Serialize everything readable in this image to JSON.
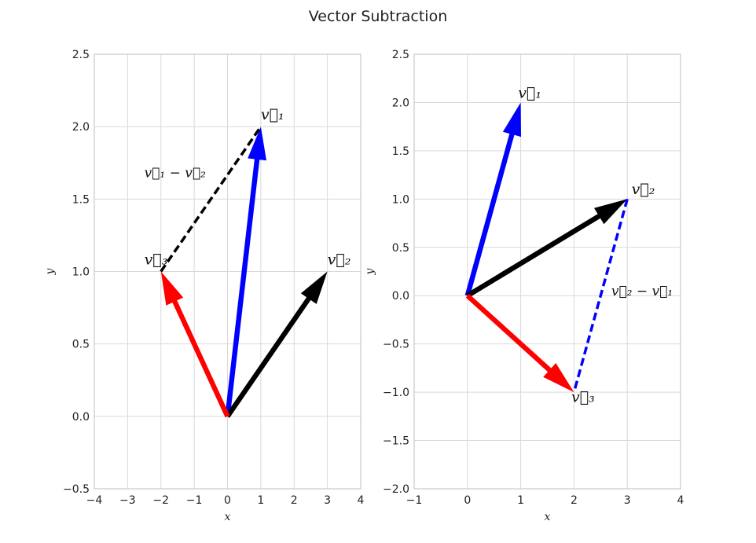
{
  "suptitle": "Vector Subtraction",
  "chart_data": [
    {
      "type": "quiver",
      "xlabel": "x",
      "ylabel": "y",
      "xlim": [
        -4,
        4
      ],
      "ylim": [
        -0.5,
        2.5
      ],
      "xticks": [
        -4,
        -3,
        -2,
        -1,
        0,
        1,
        2,
        3,
        4
      ],
      "yticks": [
        -0.5,
        0.0,
        0.5,
        1.0,
        1.5,
        2.0,
        2.5
      ],
      "xtick_labels": [
        "−4",
        "−3",
        "−2",
        "−1",
        "0",
        "1",
        "2",
        "3",
        "4"
      ],
      "ytick_labels": [
        "−0.5",
        "0.0",
        "0.5",
        "1.0",
        "1.5",
        "2.0",
        "2.5"
      ],
      "grid": true,
      "vectors": [
        {
          "id": "v1",
          "x0": 0,
          "y0": 0,
          "x1": 1,
          "y1": 2,
          "color": "#0000ff",
          "style": "arrow"
        },
        {
          "id": "v2",
          "x0": 0,
          "y0": 0,
          "x1": 3,
          "y1": 1,
          "color": "#000000",
          "style": "arrow"
        },
        {
          "id": "v3",
          "x0": 0,
          "y0": 0,
          "x1": -2,
          "y1": 1,
          "color": "#ff0000",
          "style": "arrow"
        },
        {
          "id": "diff",
          "x0": -2,
          "y0": 1,
          "x1": 1,
          "y1": 2,
          "color": "#000000",
          "style": "dashed"
        }
      ],
      "annotations": [
        {
          "text": "v⃗₁",
          "x": 1.0,
          "y": 2.05
        },
        {
          "text": "v⃗₂",
          "x": 3.0,
          "y": 1.05
        },
        {
          "text": "v⃗₃",
          "x": -2.5,
          "y": 1.05
        },
        {
          "text": "v⃗₁ − v⃗₂",
          "x": -2.5,
          "y": 1.65,
          "small": true
        }
      ]
    },
    {
      "type": "quiver",
      "xlabel": "x",
      "ylabel": "y",
      "xlim": [
        -1,
        4
      ],
      "ylim": [
        -2.0,
        2.5
      ],
      "xticks": [
        -1,
        0,
        1,
        2,
        3,
        4
      ],
      "yticks": [
        -2.0,
        -1.5,
        -1.0,
        -0.5,
        0.0,
        0.5,
        1.0,
        1.5,
        2.0,
        2.5
      ],
      "xtick_labels": [
        "−1",
        "0",
        "1",
        "2",
        "3",
        "4"
      ],
      "ytick_labels": [
        "−2.0",
        "−1.5",
        "−1.0",
        "−0.5",
        "0.0",
        "0.5",
        "1.0",
        "1.5",
        "2.0",
        "2.5"
      ],
      "grid": true,
      "vectors": [
        {
          "id": "v1",
          "x0": 0,
          "y0": 0,
          "x1": 1,
          "y1": 2,
          "color": "#0000ff",
          "style": "arrow"
        },
        {
          "id": "v2",
          "x0": 0,
          "y0": 0,
          "x1": 3,
          "y1": 1,
          "color": "#000000",
          "style": "arrow"
        },
        {
          "id": "v3",
          "x0": 0,
          "y0": 0,
          "x1": 2,
          "y1": -1,
          "color": "#ff0000",
          "style": "arrow"
        },
        {
          "id": "diff",
          "x0": 3,
          "y0": 1,
          "x1": 2,
          "y1": -1,
          "color": "#0000ff",
          "style": "dashed"
        }
      ],
      "annotations": [
        {
          "text": "v⃗₁",
          "x": 0.95,
          "y": 2.05
        },
        {
          "text": "v⃗₂",
          "x": 3.08,
          "y": 1.05
        },
        {
          "text": "v⃗₃",
          "x": 1.95,
          "y": -1.1
        },
        {
          "text": "v⃗₂ − v⃗₁",
          "x": 2.7,
          "y": 0.0,
          "small": true
        }
      ]
    }
  ]
}
